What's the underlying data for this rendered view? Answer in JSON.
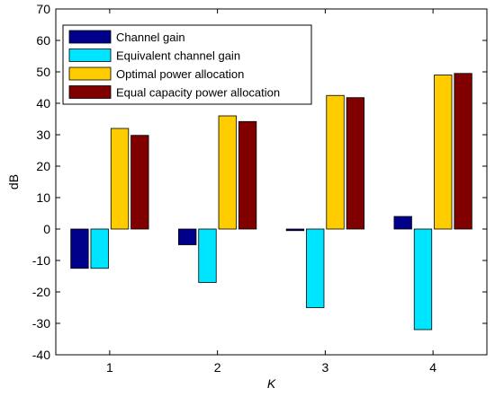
{
  "chart_data": {
    "type": "bar",
    "xlabel": "K",
    "ylabel": "dB",
    "categories": [
      "1",
      "2",
      "3",
      "4"
    ],
    "ylim": [
      -40,
      70
    ],
    "yticks": [
      -40,
      -30,
      -20,
      -10,
      0,
      10,
      20,
      30,
      40,
      50,
      60,
      70
    ],
    "grid": false,
    "legend_position": "top-left",
    "series": [
      {
        "name": "Channel gain",
        "color": "#00008B",
        "values": [
          -12.5,
          -5,
          -0.5,
          4
        ]
      },
      {
        "name": "Equivalent channel gain",
        "color": "#00E5FF",
        "values": [
          -12.5,
          -17,
          -25,
          -32
        ]
      },
      {
        "name": "Optimal power allocation",
        "color": "#FFCC00",
        "values": [
          32,
          36,
          42.5,
          49
        ]
      },
      {
        "name": "Equal capacity power allocation",
        "color": "#800000",
        "values": [
          29.8,
          34.2,
          41.8,
          49.5
        ]
      }
    ]
  }
}
